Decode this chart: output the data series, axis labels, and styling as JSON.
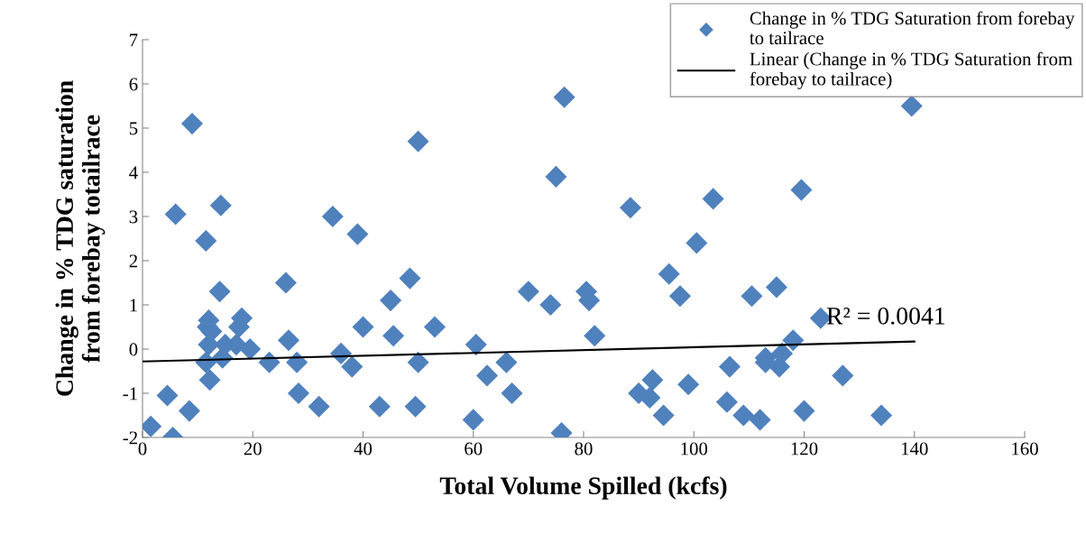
{
  "chart_data": {
    "type": "scatter",
    "xlabel": "Total Volume Spilled (kcfs)",
    "ylabel": "Change in % TDG saturation\nfrom forebay totailrace",
    "xlim": [
      0,
      160
    ],
    "xticks": [
      0,
      20,
      40,
      60,
      80,
      100,
      120,
      140,
      160
    ],
    "ylim": [
      -2,
      7
    ],
    "yticks": [
      -2,
      -1,
      0,
      1,
      2,
      3,
      4,
      5,
      6,
      7
    ],
    "grid": false,
    "legend": "top right",
    "marker": "diamond",
    "annotations": [
      {
        "text": "R² = 0.0041",
        "x": 124,
        "y": 0.7
      }
    ],
    "series": [
      {
        "name": "Change in % TDG Saturation from forebay to tailrace",
        "color": "#4f81bd",
        "x": [
          1.5,
          4.5,
          5.5,
          6,
          8.5,
          9,
          11.5,
          11.5,
          11.8,
          12,
          12,
          12.2,
          12.5,
          14,
          14.2,
          14.5,
          15,
          17,
          17.5,
          18,
          19.5,
          23,
          26,
          26.5,
          28,
          28.3,
          32,
          34.5,
          36,
          38,
          39,
          40,
          43,
          45,
          45.5,
          48.5,
          49.5,
          50,
          50,
          53,
          60,
          60.5,
          62.5,
          66,
          67,
          70,
          74,
          75,
          76,
          76.5,
          80.5,
          81,
          82,
          88.5,
          90,
          92,
          92.5,
          94.5,
          95.5,
          97.5,
          99,
          100.5,
          103.5,
          106,
          106.5,
          109,
          110.5,
          112,
          113,
          113,
          115,
          115.5,
          116,
          118,
          119.5,
          120,
          123,
          127,
          134,
          139.5
        ],
        "values": [
          -1.75,
          -1.05,
          -2.0,
          3.05,
          -1.4,
          5.1,
          2.45,
          -0.3,
          0.5,
          0.65,
          0.1,
          -0.7,
          0.4,
          1.3,
          3.25,
          -0.2,
          0.1,
          0.1,
          0.5,
          0.7,
          0.0,
          -0.3,
          1.5,
          0.2,
          -0.3,
          -1.0,
          -1.3,
          3.0,
          -0.1,
          -0.4,
          2.6,
          0.5,
          -1.3,
          1.1,
          0.3,
          1.6,
          -1.3,
          4.7,
          -0.3,
          0.5,
          -1.6,
          0.1,
          -0.6,
          -0.3,
          -1.0,
          1.3,
          1.0,
          3.9,
          -1.9,
          5.7,
          1.3,
          1.1,
          0.3,
          3.2,
          -1.0,
          -1.1,
          -0.7,
          -1.5,
          1.7,
          1.2,
          -0.8,
          2.4,
          3.4,
          -1.2,
          -0.4,
          -1.5,
          1.2,
          -1.6,
          -0.3,
          -0.2,
          1.4,
          -0.4,
          -0.1,
          0.2,
          3.6,
          -1.4,
          0.7,
          -0.6,
          -1.5,
          5.5
        ]
      },
      {
        "name": "Linear (Change in % TDG Saturation from forebay to tailrace)",
        "type": "line",
        "color": "#000000",
        "marker": "none",
        "line_style": "solid",
        "x": [
          0,
          140
        ],
        "values": [
          -0.28,
          0.17
        ]
      }
    ]
  }
}
